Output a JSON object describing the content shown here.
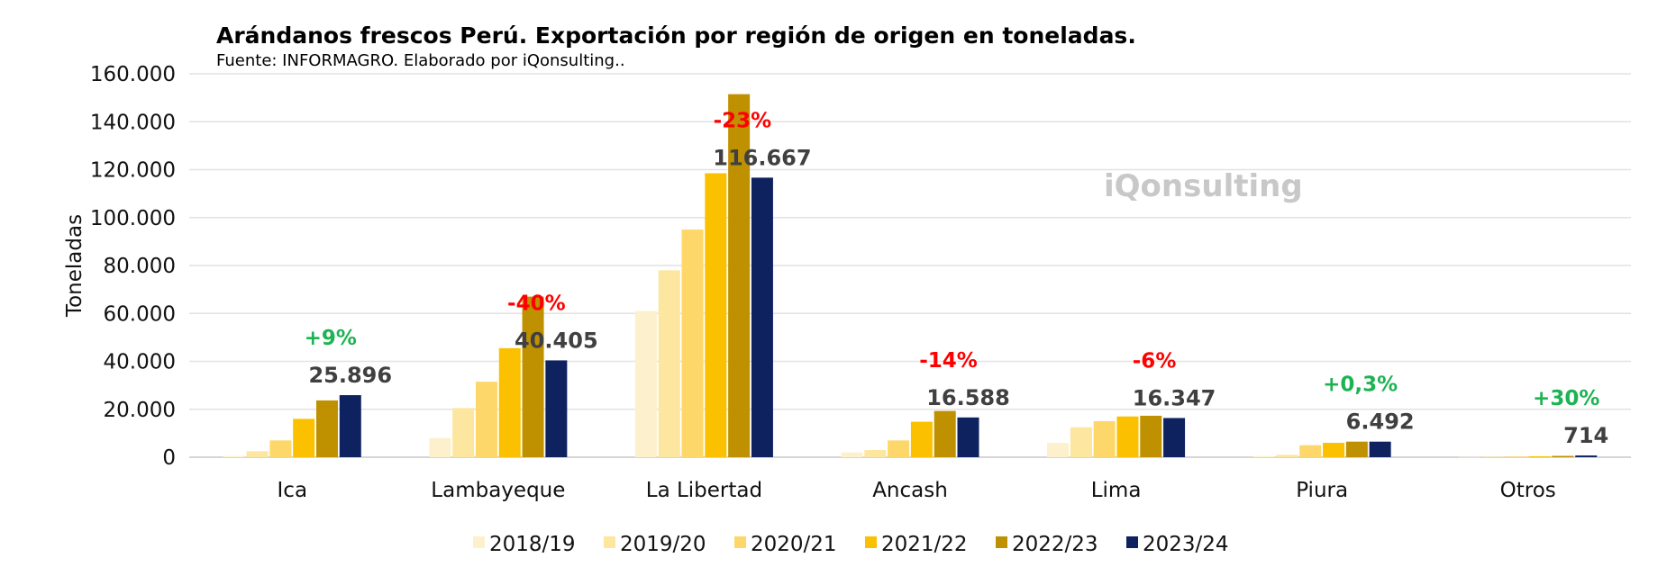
{
  "watermark": "iQonsulting",
  "chart_data": {
    "type": "bar",
    "title": "Arándanos frescos Perú. Exportación por región de origen en toneladas.",
    "subtitle": "Fuente: INFORMAGRO. Elaborado por iQonsulting..",
    "ylabel": "Toneladas",
    "xlabel": "",
    "ylim": [
      0,
      160000
    ],
    "yticks": [
      0,
      20000,
      40000,
      60000,
      80000,
      100000,
      120000,
      140000,
      160000
    ],
    "ytick_labels": [
      "0",
      "20.000",
      "40.000",
      "60.000",
      "80.000",
      "100.000",
      "120.000",
      "140.000",
      "160.000"
    ],
    "grid": true,
    "legend_position": "bottom",
    "categories": [
      "Ica",
      "Lambayeque",
      "La Libertad",
      "Ancash",
      "Lima",
      "Piura",
      "Otros"
    ],
    "series": [
      {
        "name": "2018/19",
        "color": "#fdf0cc",
        "values": [
          500,
          8000,
          61000,
          2000,
          6000,
          500,
          100
        ]
      },
      {
        "name": "2019/20",
        "color": "#fde69f",
        "values": [
          2500,
          20500,
          78000,
          3000,
          12500,
          1000,
          200
        ]
      },
      {
        "name": "2020/21",
        "color": "#fdd769",
        "values": [
          7000,
          31500,
          95000,
          7000,
          15000,
          5000,
          300
        ]
      },
      {
        "name": "2021/22",
        "color": "#fbc100",
        "values": [
          16000,
          45500,
          118500,
          14800,
          17000,
          6000,
          400
        ]
      },
      {
        "name": "2022/23",
        "color": "#bf9100",
        "values": [
          23700,
          67000,
          151500,
          19300,
          17300,
          6500,
          550
        ]
      },
      {
        "name": "2023/24",
        "color": "#0f2260",
        "values": [
          25896,
          40405,
          116667,
          16588,
          16347,
          6492,
          714
        ]
      }
    ],
    "value_labels": [
      "25.896",
      "40.405",
      "116.667",
      "16.588",
      "16.347",
      "6.492",
      "714"
    ],
    "change_labels": [
      {
        "text": "+9%",
        "color": "#1db352"
      },
      {
        "text": "-40%",
        "color": "#ff0000"
      },
      {
        "text": "-23%",
        "color": "#ff0000"
      },
      {
        "text": "-14%",
        "color": "#ff0000"
      },
      {
        "text": "-6%",
        "color": "#ff0000"
      },
      {
        "text": "+0,3%",
        "color": "#1db352"
      },
      {
        "text": "+30%",
        "color": "#1db352"
      }
    ]
  }
}
